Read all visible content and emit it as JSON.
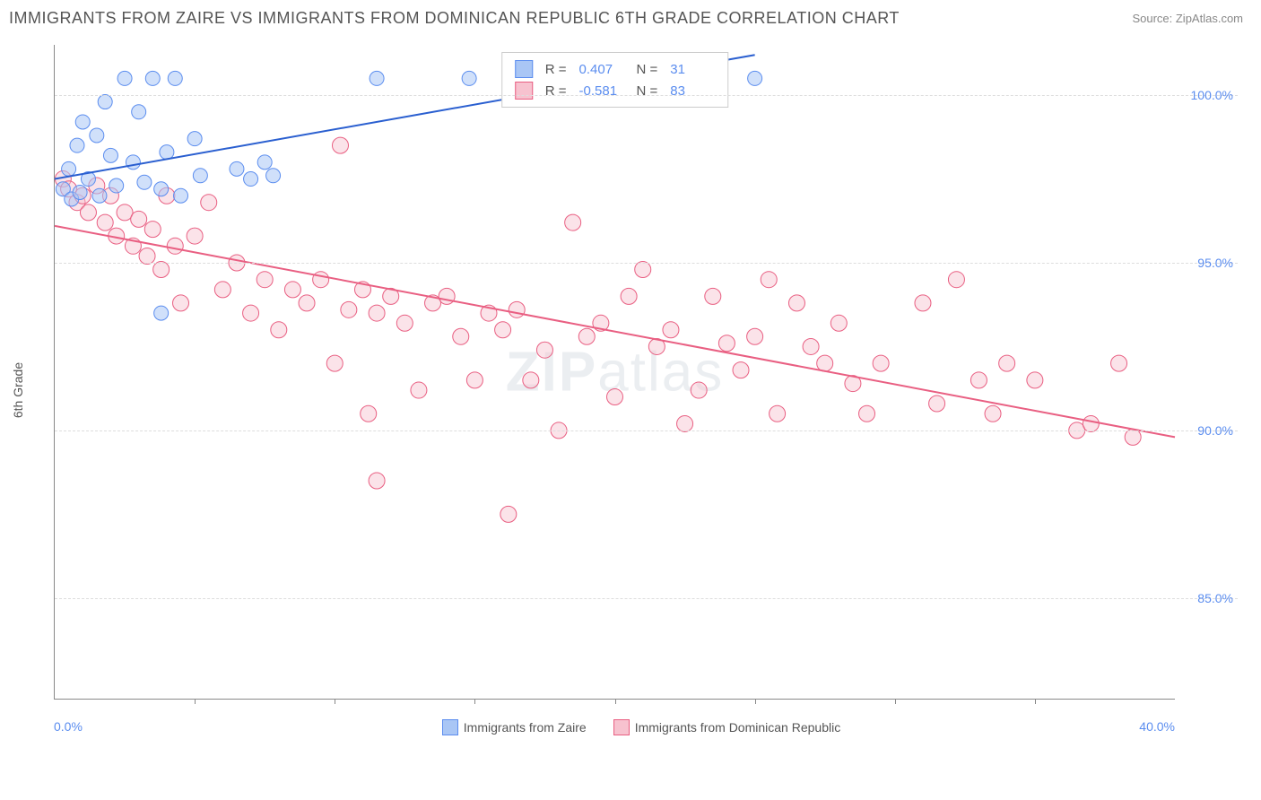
{
  "header": {
    "title": "IMMIGRANTS FROM ZAIRE VS IMMIGRANTS FROM DOMINICAN REPUBLIC 6TH GRADE CORRELATION CHART",
    "source": "Source: ZipAtlas.com"
  },
  "axes": {
    "y_label": "6th Grade",
    "x_min": 0.0,
    "x_max": 40.0,
    "x_min_label": "0.0%",
    "x_max_label": "40.0%",
    "x_tick_count": 8,
    "y_min": 82.0,
    "y_max": 101.5,
    "y_gridlines": [
      {
        "value": 100.0,
        "label": "100.0%"
      },
      {
        "value": 95.0,
        "label": "95.0%"
      },
      {
        "value": 90.0,
        "label": "90.0%"
      },
      {
        "value": 85.0,
        "label": "85.0%"
      }
    ]
  },
  "series": {
    "zaire": {
      "label": "Immigrants from Zaire",
      "fill": "#a9c6f5",
      "stroke": "#5b8def",
      "trend": {
        "x1": 0.0,
        "y1": 97.5,
        "x2": 25.0,
        "y2": 101.2,
        "color": "#2a5fd0",
        "width": 2
      },
      "marker_radius": 8,
      "marker_opacity": 0.55,
      "points": [
        [
          0.3,
          97.2
        ],
        [
          0.5,
          97.8
        ],
        [
          0.6,
          96.9
        ],
        [
          0.8,
          98.5
        ],
        [
          0.9,
          97.1
        ],
        [
          1.0,
          99.2
        ],
        [
          1.2,
          97.5
        ],
        [
          1.5,
          98.8
        ],
        [
          1.6,
          97.0
        ],
        [
          1.8,
          99.8
        ],
        [
          2.0,
          98.2
        ],
        [
          2.2,
          97.3
        ],
        [
          2.5,
          100.5
        ],
        [
          2.8,
          98.0
        ],
        [
          3.0,
          99.5
        ],
        [
          3.2,
          97.4
        ],
        [
          3.5,
          100.5
        ],
        [
          3.8,
          97.2
        ],
        [
          4.0,
          98.3
        ],
        [
          4.3,
          100.5
        ],
        [
          4.5,
          97.0
        ],
        [
          5.0,
          98.7
        ],
        [
          5.2,
          97.6
        ],
        [
          3.8,
          93.5
        ],
        [
          6.5,
          97.8
        ],
        [
          7.0,
          97.5
        ],
        [
          7.5,
          98.0
        ],
        [
          7.8,
          97.6
        ],
        [
          11.5,
          100.5
        ],
        [
          14.8,
          100.5
        ],
        [
          25.0,
          100.5
        ]
      ]
    },
    "dominican": {
      "label": "Immigrants from Dominican Republic",
      "fill": "#f7c2cf",
      "stroke": "#e95f82",
      "trend": {
        "x1": 0.0,
        "y1": 96.1,
        "x2": 40.0,
        "y2": 89.8,
        "color": "#e95f82",
        "width": 2
      },
      "marker_radius": 9,
      "marker_opacity": 0.45,
      "points": [
        [
          0.3,
          97.5
        ],
        [
          0.5,
          97.2
        ],
        [
          0.8,
          96.8
        ],
        [
          1.0,
          97.0
        ],
        [
          1.2,
          96.5
        ],
        [
          1.5,
          97.3
        ],
        [
          1.8,
          96.2
        ],
        [
          2.0,
          97.0
        ],
        [
          2.2,
          95.8
        ],
        [
          2.5,
          96.5
        ],
        [
          2.8,
          95.5
        ],
        [
          3.0,
          96.3
        ],
        [
          3.3,
          95.2
        ],
        [
          3.5,
          96.0
        ],
        [
          3.8,
          94.8
        ],
        [
          4.0,
          97.0
        ],
        [
          4.3,
          95.5
        ],
        [
          4.5,
          93.8
        ],
        [
          5.0,
          95.8
        ],
        [
          5.5,
          96.8
        ],
        [
          6.0,
          94.2
        ],
        [
          6.5,
          95.0
        ],
        [
          7.0,
          93.5
        ],
        [
          7.5,
          94.5
        ],
        [
          8.0,
          93.0
        ],
        [
          8.5,
          94.2
        ],
        [
          9.0,
          93.8
        ],
        [
          9.5,
          94.5
        ],
        [
          10.0,
          92.0
        ],
        [
          10.2,
          98.5
        ],
        [
          10.5,
          93.6
        ],
        [
          11.0,
          94.2
        ],
        [
          11.2,
          90.5
        ],
        [
          11.5,
          93.5
        ],
        [
          12.0,
          94.0
        ],
        [
          11.5,
          88.5
        ],
        [
          12.5,
          93.2
        ],
        [
          13.0,
          91.2
        ],
        [
          13.5,
          93.8
        ],
        [
          14.0,
          94.0
        ],
        [
          14.5,
          92.8
        ],
        [
          15.0,
          91.5
        ],
        [
          15.5,
          93.5
        ],
        [
          16.0,
          93.0
        ],
        [
          16.2,
          87.5
        ],
        [
          16.5,
          93.6
        ],
        [
          17.0,
          91.5
        ],
        [
          17.5,
          92.4
        ],
        [
          18.0,
          90.0
        ],
        [
          18.5,
          96.2
        ],
        [
          19.0,
          92.8
        ],
        [
          19.5,
          93.2
        ],
        [
          20.0,
          91.0
        ],
        [
          20.5,
          94.0
        ],
        [
          21.0,
          94.8
        ],
        [
          21.5,
          92.5
        ],
        [
          22.0,
          93.0
        ],
        [
          22.5,
          90.2
        ],
        [
          23.0,
          91.2
        ],
        [
          23.5,
          94.0
        ],
        [
          24.0,
          92.6
        ],
        [
          24.5,
          91.8
        ],
        [
          25.0,
          92.8
        ],
        [
          25.5,
          94.5
        ],
        [
          25.8,
          90.5
        ],
        [
          26.5,
          93.8
        ],
        [
          27.0,
          92.5
        ],
        [
          27.5,
          92.0
        ],
        [
          28.0,
          93.2
        ],
        [
          28.5,
          91.4
        ],
        [
          29.0,
          90.5
        ],
        [
          29.5,
          92.0
        ],
        [
          31.0,
          93.8
        ],
        [
          31.5,
          90.8
        ],
        [
          32.2,
          94.5
        ],
        [
          33.0,
          91.5
        ],
        [
          33.5,
          90.5
        ],
        [
          34.0,
          92.0
        ],
        [
          35.0,
          91.5
        ],
        [
          36.5,
          90.0
        ],
        [
          37.0,
          90.2
        ],
        [
          38.0,
          92.0
        ],
        [
          38.5,
          89.8
        ]
      ]
    }
  },
  "stats_box": {
    "rows": [
      {
        "swatch_fill": "#a9c6f5",
        "swatch_stroke": "#5b8def",
        "r_label": "R =",
        "r_value": "0.407",
        "n_label": "N =",
        "n_value": "31"
      },
      {
        "swatch_fill": "#f7c2cf",
        "swatch_stroke": "#e95f82",
        "r_label": "R =",
        "r_value": "-0.581",
        "n_label": "N =",
        "n_value": "83"
      }
    ]
  },
  "watermark": {
    "bold": "ZIP",
    "rest": "atlas"
  },
  "colors": {
    "grid": "#dddddd",
    "axis": "#888888",
    "tick_label": "#5b8def",
    "text": "#555555"
  }
}
